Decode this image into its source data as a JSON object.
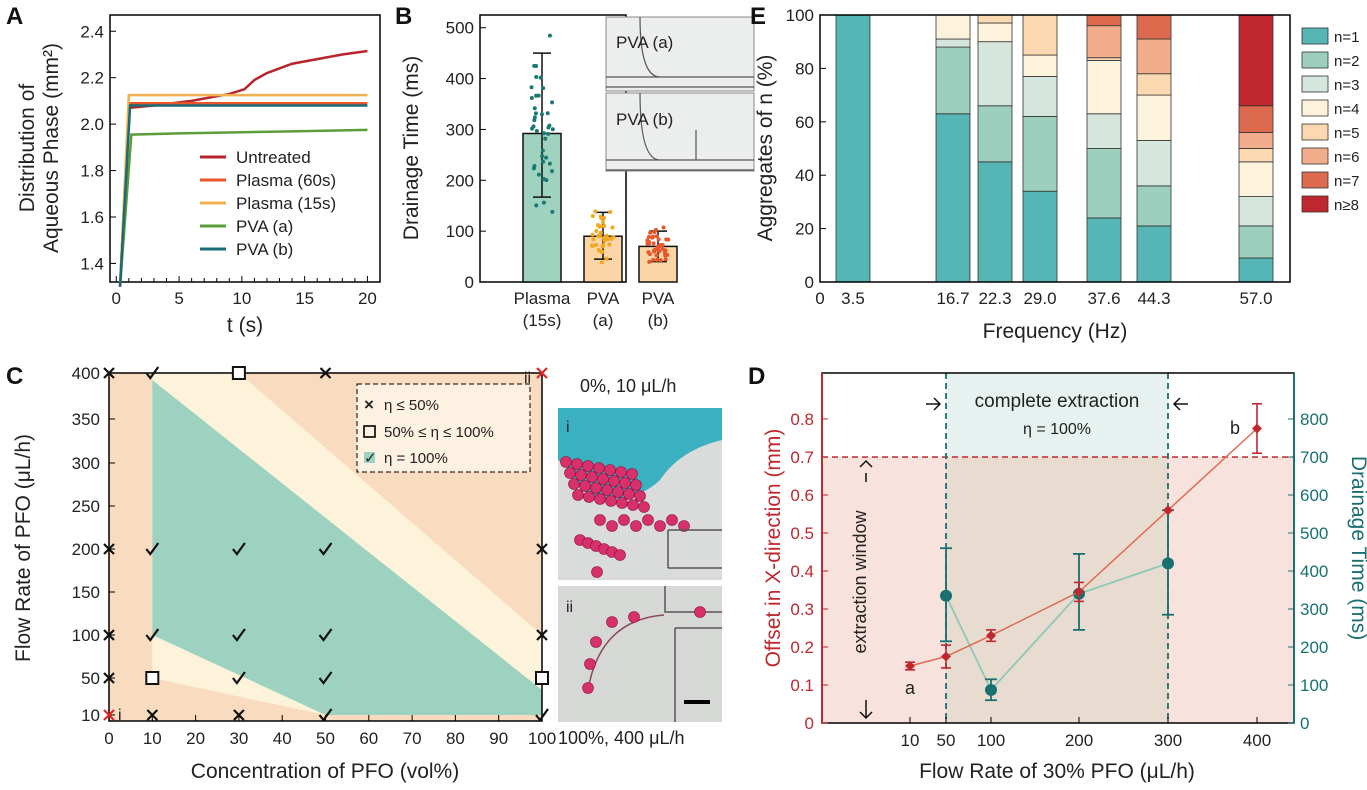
{
  "panels": {
    "A": "A",
    "B": "B",
    "C": "C",
    "D": "D",
    "E": "E"
  },
  "chart_data": [
    {
      "panel": "A",
      "type": "line",
      "xlabel": "t (s)",
      "ylabel_line1": "Distribution of",
      "ylabel_line2": "Aqueous Phase (mm²)",
      "xlim": [
        -0.5,
        21
      ],
      "ylim": [
        1.32,
        2.47
      ],
      "xticks": [
        0,
        5,
        10,
        15,
        20
      ],
      "yticks": [
        1.4,
        1.6,
        1.8,
        2.0,
        2.2,
        2.4
      ],
      "series": [
        {
          "name": "Untreated",
          "color": "#b8242c",
          "points": [
            [
              0.3,
              1.3
            ],
            [
              1.0,
              2.07
            ],
            [
              3,
              2.08
            ],
            [
              6,
              2.1
            ],
            [
              9,
              2.13
            ],
            [
              10.2,
              2.15
            ],
            [
              11,
              2.19
            ],
            [
              12,
              2.22
            ],
            [
              14,
              2.26
            ],
            [
              16,
              2.28
            ],
            [
              18,
              2.3
            ],
            [
              20,
              2.315
            ]
          ]
        },
        {
          "name": "Plasma (60s)",
          "color": "#e8562a",
          "points": [
            [
              0.3,
              1.3
            ],
            [
              1.0,
              2.09
            ],
            [
              5,
              2.09
            ],
            [
              10,
              2.09
            ],
            [
              15,
              2.09
            ],
            [
              20,
              2.09
            ]
          ]
        },
        {
          "name": "Plasma (15s)",
          "color": "#f0b050",
          "points": [
            [
              0.3,
              1.3
            ],
            [
              1.0,
              2.125
            ],
            [
              5,
              2.125
            ],
            [
              10,
              2.125
            ],
            [
              15,
              2.125
            ],
            [
              20,
              2.125
            ]
          ]
        },
        {
          "name": "PVA (a)",
          "color": "#5a9e3a",
          "points": [
            [
              0.3,
              1.3
            ],
            [
              1.2,
              1.955
            ],
            [
              5,
              1.96
            ],
            [
              10,
              1.965
            ],
            [
              15,
              1.97
            ],
            [
              20,
              1.975
            ]
          ]
        },
        {
          "name": "PVA (b)",
          "color": "#1a6a78",
          "points": [
            [
              0.3,
              1.3
            ],
            [
              1.1,
              2.08
            ],
            [
              5,
              2.08
            ],
            [
              10,
              2.08
            ],
            [
              15,
              2.08
            ],
            [
              20,
              2.08
            ]
          ]
        }
      ]
    },
    {
      "panel": "B",
      "type": "bar",
      "ylabel": "Drainage Time (ms)",
      "ylim": [
        0,
        525
      ],
      "yticks": [
        0,
        100,
        200,
        300,
        400,
        500
      ],
      "categories": [
        {
          "line1": "Plasma",
          "line2": "(15s)",
          "value": 292,
          "err_low": 167,
          "err_high": 450,
          "color": "#9fd3c0",
          "dot_color": "#1a7a72"
        },
        {
          "line1": "PVA",
          "line2": "(a)",
          "value": 90,
          "err_low": 45,
          "err_high": 137,
          "color": "#fbd5a6",
          "dot_color": "#f0a820"
        },
        {
          "line1": "PVA",
          "line2": "(b)",
          "value": 70,
          "err_low": 40,
          "err_high": 100,
          "color": "#fbd5a6",
          "dot_color": "#e8562a"
        }
      ],
      "insets": [
        "PVA (a)",
        "PVA (b)"
      ]
    },
    {
      "panel": "E",
      "type": "bar",
      "stacked": true,
      "xlabel": "Frequency (Hz)",
      "ylabel": "Aggregates of n (%)",
      "ylim": [
        0,
        100
      ],
      "yticks": [
        0,
        20,
        40,
        60,
        80,
        100
      ],
      "xtick_labels": [
        "0",
        "3.5",
        "16.7",
        "22.3",
        "29.0",
        "37.6",
        "44.3",
        "57.0"
      ],
      "legend": [
        "n=1",
        "n=2",
        "n=3",
        "n=4",
        "n=5",
        "n=6",
        "n=7",
        "n≥8"
      ],
      "colors": [
        "#56b5b5",
        "#9ccfbe",
        "#d5e7dc",
        "#fdf3dd",
        "#fbd8b0",
        "#f2ae8c",
        "#dd6a4f",
        "#c0282f"
      ],
      "bars": [
        {
          "label": "3.5",
          "values": [
            100,
            0,
            0,
            0,
            0,
            0,
            0,
            0
          ]
        },
        {
          "label": "16.7",
          "values": [
            63,
            25,
            3,
            9,
            0,
            0,
            0,
            0
          ]
        },
        {
          "label": "22.3",
          "values": [
            45,
            21,
            24,
            7,
            3,
            0,
            0,
            0
          ]
        },
        {
          "label": "29.0",
          "values": [
            34,
            28,
            15,
            8,
            15,
            0,
            0,
            0
          ]
        },
        {
          "label": "37.6",
          "values": [
            24,
            26,
            13,
            20,
            1,
            12,
            4,
            0
          ]
        },
        {
          "label": "44.3",
          "values": [
            21,
            15,
            17,
            17,
            8,
            13,
            9,
            0
          ]
        },
        {
          "label": "57.0",
          "values": [
            9,
            12,
            11,
            13,
            5,
            6,
            10,
            34
          ]
        }
      ]
    },
    {
      "panel": "C",
      "type": "scatter",
      "xlabel": "Concentration of PFO (vol%)",
      "ylabel": "Flow Rate of PFO (μL/h)",
      "xlim": [
        0,
        100
      ],
      "xticks": [
        0,
        10,
        20,
        30,
        40,
        50,
        60,
        70,
        80,
        90,
        100
      ],
      "yticks": [
        10,
        50,
        100,
        150,
        200,
        250,
        300,
        350,
        400
      ],
      "legend": [
        "η ≤ 50%",
        "50% ≤ η ≤ 100%",
        "η = 100%"
      ],
      "points": [
        {
          "x": 0,
          "y": 400,
          "m": "x"
        },
        {
          "x": 10,
          "y": 400,
          "m": "check"
        },
        {
          "x": 30,
          "y": 400,
          "m": "sq"
        },
        {
          "x": 50,
          "y": 400,
          "m": "x"
        },
        {
          "x": 100,
          "y": 400,
          "m": "xr"
        },
        {
          "x": 0,
          "y": 200,
          "m": "x"
        },
        {
          "x": 10,
          "y": 200,
          "m": "check"
        },
        {
          "x": 30,
          "y": 200,
          "m": "check"
        },
        {
          "x": 50,
          "y": 200,
          "m": "check"
        },
        {
          "x": 100,
          "y": 200,
          "m": "x"
        },
        {
          "x": 0,
          "y": 100,
          "m": "x"
        },
        {
          "x": 10,
          "y": 100,
          "m": "check"
        },
        {
          "x": 30,
          "y": 100,
          "m": "check"
        },
        {
          "x": 50,
          "y": 100,
          "m": "check"
        },
        {
          "x": 100,
          "y": 100,
          "m": "x"
        },
        {
          "x": 0,
          "y": 50,
          "m": "x"
        },
        {
          "x": 10,
          "y": 50,
          "m": "sq"
        },
        {
          "x": 30,
          "y": 50,
          "m": "check"
        },
        {
          "x": 50,
          "y": 50,
          "m": "check"
        },
        {
          "x": 100,
          "y": 50,
          "m": "sq"
        },
        {
          "x": 0,
          "y": 10,
          "m": "xr"
        },
        {
          "x": 10,
          "y": 10,
          "m": "x"
        },
        {
          "x": 30,
          "y": 10,
          "m": "x"
        },
        {
          "x": 50,
          "y": 10,
          "m": "check"
        },
        {
          "x": 100,
          "y": 10,
          "m": "check"
        }
      ],
      "annotations": {
        "i": "i",
        "ii": "ii"
      },
      "micrograph_top": "0%, 10 μL/h",
      "micrograph_bottom": "100%, 400 μL/h",
      "micro_i": "i",
      "micro_ii": "ii",
      "colors": {
        "orange": "#f9dcbf",
        "cream": "#fcf3da",
        "green": "#9ed2c0"
      }
    },
    {
      "panel": "D",
      "type": "line",
      "xlabel": "Flow Rate of 30% PFO (μL/h)",
      "ylabel_left": "Offset in X-direction (mm)",
      "ylabel_right": "Drainage Time (ms)",
      "xtick_labels": [
        "10",
        "50",
        "100",
        "200",
        "300",
        "400"
      ],
      "yticks_left": [
        0,
        0.1,
        0.2,
        0.3,
        0.4,
        0.5,
        0.6,
        0.7,
        0.8
      ],
      "yticks_right": [
        0,
        100,
        200,
        300,
        400,
        500,
        600,
        700,
        800
      ],
      "threshold_left": 0.7,
      "offset": [
        {
          "x": "10",
          "y": 0.15,
          "err": 0.01
        },
        {
          "x": "50",
          "y": 0.175,
          "err": 0.03
        },
        {
          "x": "100",
          "y": 0.23,
          "err": 0.015
        },
        {
          "x": "200",
          "y": 0.345,
          "err": 0.025
        },
        {
          "x": "300",
          "y": 0.56,
          "err": 0
        },
        {
          "x": "400",
          "y": 0.775,
          "err": 0.065
        }
      ],
      "drainage": [
        {
          "x": "50",
          "y": 335,
          "err_low": 215,
          "err_high": 460
        },
        {
          "x": "100",
          "y": 87,
          "err_low": 60,
          "err_high": 115
        },
        {
          "x": "200",
          "y": 340,
          "err_low": 245,
          "err_high": 445
        },
        {
          "x": "300",
          "y": 420,
          "err_low": 285,
          "err_high": 560
        }
      ],
      "annotations": {
        "complete_extraction": "complete extraction",
        "eta": "η = 100%",
        "extraction_window": "extraction window",
        "a": "a",
        "b": "b"
      },
      "colors": {
        "offset": "#c0282f",
        "drainage": "#1a7070",
        "bg": "#f7e2dd",
        "band": "#e7f2f0"
      }
    }
  ]
}
